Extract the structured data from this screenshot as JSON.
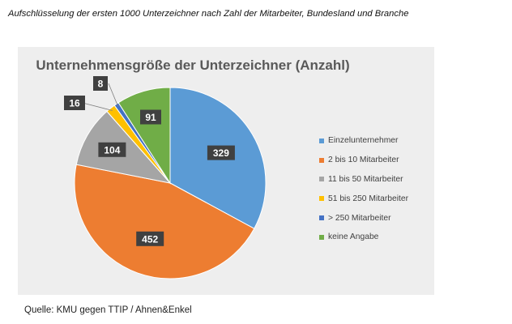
{
  "document": {
    "heading": "Aufschlüsselung der ersten 1000 Unterzeichner nach Zahl der Mitarbeiter, Bundesland und Branche",
    "source": "Quelle: KMU gegen TTIP / Ahnen&Enkel"
  },
  "chart_data": {
    "type": "pie",
    "title": "Unternehmensgröße der Unterzeichner (Anzahl)",
    "start_angle_deg": 0,
    "direction": "clockwise",
    "legend_position": "right",
    "slices": [
      {
        "label": "Einzelunternehmer",
        "value": 329,
        "color": "#5b9bd5"
      },
      {
        "label": "2 bis 10 Mitarbeiter",
        "value": 452,
        "color": "#ed7d31"
      },
      {
        "label": "11 bis 50  Mitarbeiter",
        "value": 104,
        "color": "#a5a5a5"
      },
      {
        "label": "51 bis 250 Mitarbeiter",
        "value": 16,
        "color": "#ffc000"
      },
      {
        "label": "> 250 Mitarbeiter",
        "value": 8,
        "color": "#4472c4"
      },
      {
        "label": "keine Angabe",
        "value": 91,
        "color": "#70ad47"
      }
    ]
  }
}
